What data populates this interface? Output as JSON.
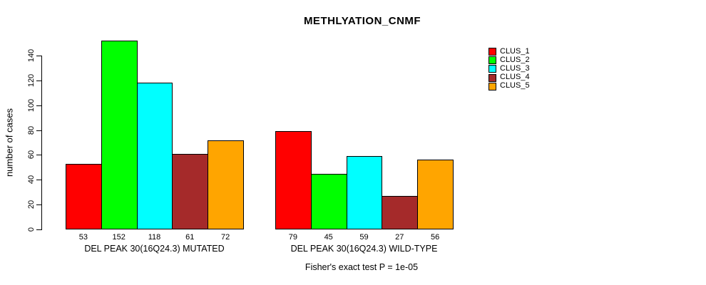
{
  "chart_data": {
    "type": "bar",
    "title": "METHLYATION_CNMF",
    "ylabel": "number of cases",
    "xlabel": "",
    "ylim": [
      0,
      140
    ],
    "yticks": [
      0,
      20,
      40,
      60,
      80,
      100,
      120,
      140
    ],
    "categories": [
      "DEL PEAK 30(16Q24.3) MUTATED",
      "DEL PEAK 30(16Q24.3) WILD-TYPE"
    ],
    "series": [
      {
        "name": "CLUS_1",
        "color": "#ff0000",
        "values": [
          53,
          79
        ]
      },
      {
        "name": "CLUS_2",
        "color": "#00ff00",
        "values": [
          152,
          45
        ]
      },
      {
        "name": "CLUS_3",
        "color": "#00ffff",
        "values": [
          118,
          59
        ]
      },
      {
        "name": "CLUS_4",
        "color": "#a52a2a",
        "values": [
          61,
          27
        ]
      },
      {
        "name": "CLUS_5",
        "color": "#ffa500",
        "values": [
          72,
          56
        ]
      }
    ],
    "bar_value_labels": [
      [
        53,
        152,
        118,
        61,
        72
      ],
      [
        79,
        45,
        59,
        27,
        56
      ]
    ],
    "legend_position": "top-right",
    "grid": false,
    "annotation": "Fisher's exact test P = 1e-05"
  }
}
